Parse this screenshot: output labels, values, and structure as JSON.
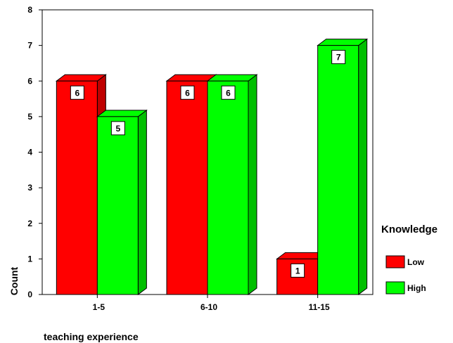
{
  "chart_data": {
    "type": "bar",
    "style": "3d-clustered",
    "categories": [
      "1-5",
      "6-10",
      "11-15"
    ],
    "series": [
      {
        "name": "Low",
        "values": [
          6,
          6,
          1
        ],
        "color": "#ff0000"
      },
      {
        "name": "High",
        "values": [
          5,
          6,
          7
        ],
        "color": "#00ff00"
      }
    ],
    "xlabel": "teaching experience",
    "ylabel": "Count",
    "ylim": [
      0,
      8
    ],
    "yticks": [
      "0",
      "1",
      "2",
      "3",
      "4",
      "5",
      "6",
      "7",
      "8"
    ],
    "legend": {
      "title": "Knowledge",
      "placement": "right"
    },
    "grid": false,
    "data_labels": true
  }
}
